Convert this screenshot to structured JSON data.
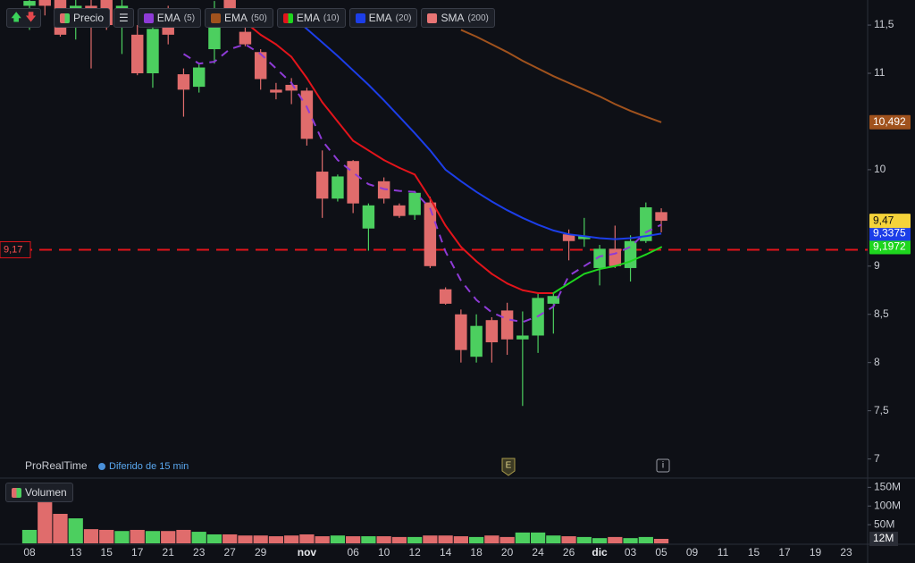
{
  "chart_data": {
    "type": "candlestick",
    "branding": "ProRealTime",
    "delay_note": "Diferido de 15 min",
    "price_label": "Precio",
    "markers": [
      "E",
      "i"
    ],
    "categories": [
      "08",
      null,
      null,
      "13",
      null,
      "15",
      null,
      "17",
      null,
      "21",
      null,
      "23",
      null,
      "27",
      null,
      "29",
      null,
      null,
      "nov",
      null,
      null,
      "06",
      null,
      "10",
      null,
      "12",
      null,
      "14",
      null,
      "18",
      null,
      "20",
      null,
      "24",
      null,
      "26",
      null,
      "dic",
      null,
      "03",
      null,
      "05",
      null,
      "09",
      null,
      "11",
      null,
      "15",
      null,
      "17",
      null,
      "19",
      null,
      "23"
    ],
    "open": [
      11.7,
      11.8,
      11.85,
      11.55,
      11.7,
      11.9,
      11.6,
      11.4,
      11.0,
      11.55,
      10.99,
      10.86,
      11.25,
      11.85,
      11.43,
      11.22,
      10.83,
      10.88,
      10.82,
      9.98,
      9.7,
      10.09,
      9.39,
      9.88,
      9.63,
      9.53,
      9.66,
      8.76,
      8.5,
      8.06,
      8.44,
      8.54,
      8.24,
      8.28,
      8.61,
      9.33,
      9.28,
      8.98,
      9.18,
      8.98,
      9.26,
      9.56,
      null,
      null,
      null,
      null,
      null,
      null,
      null,
      null,
      null,
      null,
      null,
      null
    ],
    "high": [
      11.85,
      11.9,
      11.9,
      11.85,
      11.9,
      11.95,
      11.8,
      11.5,
      11.5,
      11.7,
      11.05,
      11.1,
      11.75,
      11.9,
      11.5,
      11.25,
      10.9,
      10.95,
      10.85,
      10.2,
      9.95,
      10.1,
      9.65,
      9.92,
      9.65,
      9.78,
      9.72,
      8.78,
      8.55,
      8.5,
      8.47,
      8.62,
      8.53,
      8.72,
      8.72,
      9.38,
      9.5,
      9.22,
      9.42,
      9.32,
      9.66,
      9.6,
      null,
      null,
      null,
      null,
      null,
      null,
      null,
      null,
      null,
      null,
      null,
      null
    ],
    "low": [
      11.45,
      11.6,
      11.38,
      11.35,
      11.05,
      11.45,
      11.2,
      10.98,
      10.85,
      11.3,
      10.55,
      10.8,
      11.1,
      11.5,
      11.28,
      10.83,
      10.73,
      10.68,
      10.25,
      9.5,
      9.67,
      9.55,
      9.16,
      9.65,
      9.5,
      9.48,
      8.98,
      8.6,
      8.0,
      8.0,
      8.0,
      8.08,
      7.55,
      8.1,
      8.3,
      9.06,
      9.2,
      8.8,
      8.98,
      8.84,
      9.24,
      9.35,
      null,
      null,
      null,
      null,
      null,
      null,
      null,
      null,
      null,
      null,
      null,
      null
    ],
    "close": [
      11.75,
      11.7,
      11.4,
      11.7,
      11.6,
      11.5,
      11.7,
      11.0,
      11.46,
      11.4,
      10.83,
      11.06,
      11.48,
      11.6,
      11.3,
      10.94,
      10.8,
      10.82,
      10.32,
      9.7,
      9.93,
      9.65,
      9.63,
      9.7,
      9.52,
      9.76,
      9.0,
      8.61,
      8.13,
      8.38,
      8.21,
      8.24,
      8.28,
      8.67,
      8.69,
      9.26,
      9.31,
      9.18,
      9.0,
      9.26,
      9.61,
      9.47,
      null,
      null,
      null,
      null,
      null,
      null,
      null,
      null,
      null,
      null,
      null,
      null
    ],
    "last_label": "9,47",
    "last_color": "#f5d33a",
    "up_color": "#4ccf5f",
    "down_color": "#e06c6c",
    "ylim": [
      6.82,
      11.76
    ],
    "yticks": [
      {
        "value": 11.5,
        "label": "11,5"
      },
      11,
      10,
      9,
      {
        "value": 8.5,
        "label": "8,5"
      },
      8,
      {
        "value": 7.5,
        "label": "7,5"
      },
      7
    ],
    "hline": {
      "value": 9.17,
      "label": "9,17",
      "color": "#e3141b"
    },
    "series": [
      {
        "name": "EMA",
        "param": "(5)",
        "color": "#8e3bd6",
        "dashed": true,
        "values": [
          null,
          null,
          null,
          null,
          null,
          null,
          null,
          null,
          null,
          null,
          11.2,
          11.1,
          11.12,
          11.25,
          11.3,
          11.2,
          11.05,
          10.9,
          10.65,
          10.3,
          10.1,
          9.97,
          9.85,
          9.8,
          9.78,
          9.77,
          9.6,
          9.15,
          8.85,
          8.65,
          8.52,
          8.45,
          8.42,
          8.48,
          8.58,
          8.9,
          9.0,
          9.1,
          9.13,
          9.2,
          9.35,
          9.43,
          null,
          null,
          null,
          null,
          null,
          null,
          null,
          null,
          null,
          null,
          null,
          null
        ]
      },
      {
        "name": "EMA",
        "param": "(50)",
        "color": "#a0521d",
        "last_label": "10,492",
        "values": [
          null,
          null,
          null,
          null,
          null,
          null,
          null,
          null,
          null,
          null,
          null,
          null,
          null,
          null,
          null,
          null,
          null,
          null,
          null,
          null,
          null,
          null,
          null,
          null,
          null,
          null,
          null,
          null,
          11.45,
          11.38,
          11.3,
          11.22,
          11.13,
          11.05,
          10.97,
          10.9,
          10.83,
          10.76,
          10.68,
          10.61,
          10.55,
          10.492,
          null,
          null,
          null,
          null,
          null,
          null,
          null,
          null,
          null,
          null,
          null,
          null
        ]
      },
      {
        "name": "EMA",
        "param": "(10)",
        "color": "#e3141b",
        "up_color": "#1ed61e",
        "last_label": "9,1972",
        "values": [
          null,
          null,
          null,
          null,
          null,
          null,
          null,
          null,
          null,
          null,
          null,
          null,
          null,
          null,
          11.53,
          11.4,
          11.3,
          11.17,
          10.95,
          10.7,
          10.5,
          10.3,
          10.2,
          10.1,
          10.02,
          9.95,
          9.7,
          9.42,
          9.2,
          9.05,
          8.92,
          8.82,
          8.75,
          8.72,
          8.72,
          8.82,
          8.92,
          8.97,
          9.0,
          9.05,
          9.12,
          9.1972,
          null,
          null,
          null,
          null,
          null,
          null,
          null,
          null,
          null,
          null,
          null,
          null
        ]
      },
      {
        "name": "EMA",
        "param": "(20)",
        "color": "#1c3ee8",
        "last_label": "9,3375",
        "values": [
          null,
          null,
          null,
          null,
          null,
          null,
          null,
          null,
          null,
          null,
          null,
          null,
          null,
          null,
          null,
          null,
          null,
          11.6,
          11.46,
          11.32,
          11.18,
          11.03,
          10.88,
          10.72,
          10.55,
          10.38,
          10.2,
          10.0,
          9.88,
          9.77,
          9.67,
          9.58,
          9.5,
          9.43,
          9.37,
          9.33,
          9.31,
          9.29,
          9.28,
          9.29,
          9.31,
          9.3375,
          null,
          null,
          null,
          null,
          null,
          null,
          null,
          null,
          null,
          null,
          null,
          null
        ]
      }
    ],
    "legend_extra": [
      {
        "name": "SMA",
        "param": "(200)",
        "color": "#e87575"
      }
    ],
    "volume": {
      "title": "Volumen",
      "values": [
        36,
        110,
        79,
        67,
        38,
        36,
        33,
        36,
        33,
        33,
        36,
        31,
        24,
        24,
        21,
        21,
        19,
        21,
        24,
        19,
        21,
        19,
        19,
        19,
        17,
        17,
        21,
        21,
        19,
        17,
        21,
        17,
        29,
        29,
        21,
        19,
        17,
        14,
        17,
        14,
        17,
        12,
        null,
        null,
        null,
        null,
        null,
        null,
        null,
        null,
        null,
        null,
        null,
        null
      ],
      "last_label": "12M",
      "ylim": [
        0,
        170
      ],
      "yticks": [
        {
          "value": 150,
          "label": "150M"
        },
        {
          "value": 100,
          "label": "100M"
        },
        {
          "value": 50,
          "label": "50M"
        }
      ]
    }
  }
}
